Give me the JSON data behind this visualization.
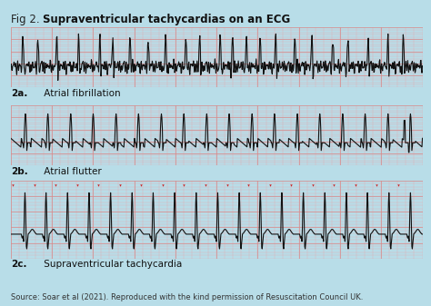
{
  "title_prefix": "Fig 2. ",
  "title_bold": "Supraventricular tachycardias on an ECG",
  "bg_color": "#b8dde8",
  "ecg_bg_color": "#f5c8cc",
  "ecg_grid_minor_color": "#e8a8aa",
  "ecg_grid_major_color": "#d88888",
  "ecg_line_color": "#111111",
  "label_2a_bold": "2a.",
  "label_2b_bold": "2b.",
  "label_2c_bold": "2c.",
  "desc_2a": " Atrial fibrillation",
  "desc_2b": " Atrial flutter",
  "desc_2c": " Supraventricular tachycardia",
  "source_text": "Source: Soar et al (2021). Reproduced with the kind permission of Resuscitation Council UK.",
  "label_fontsize": 7.5,
  "source_fontsize": 6.0,
  "title_fontsize": 8.5
}
